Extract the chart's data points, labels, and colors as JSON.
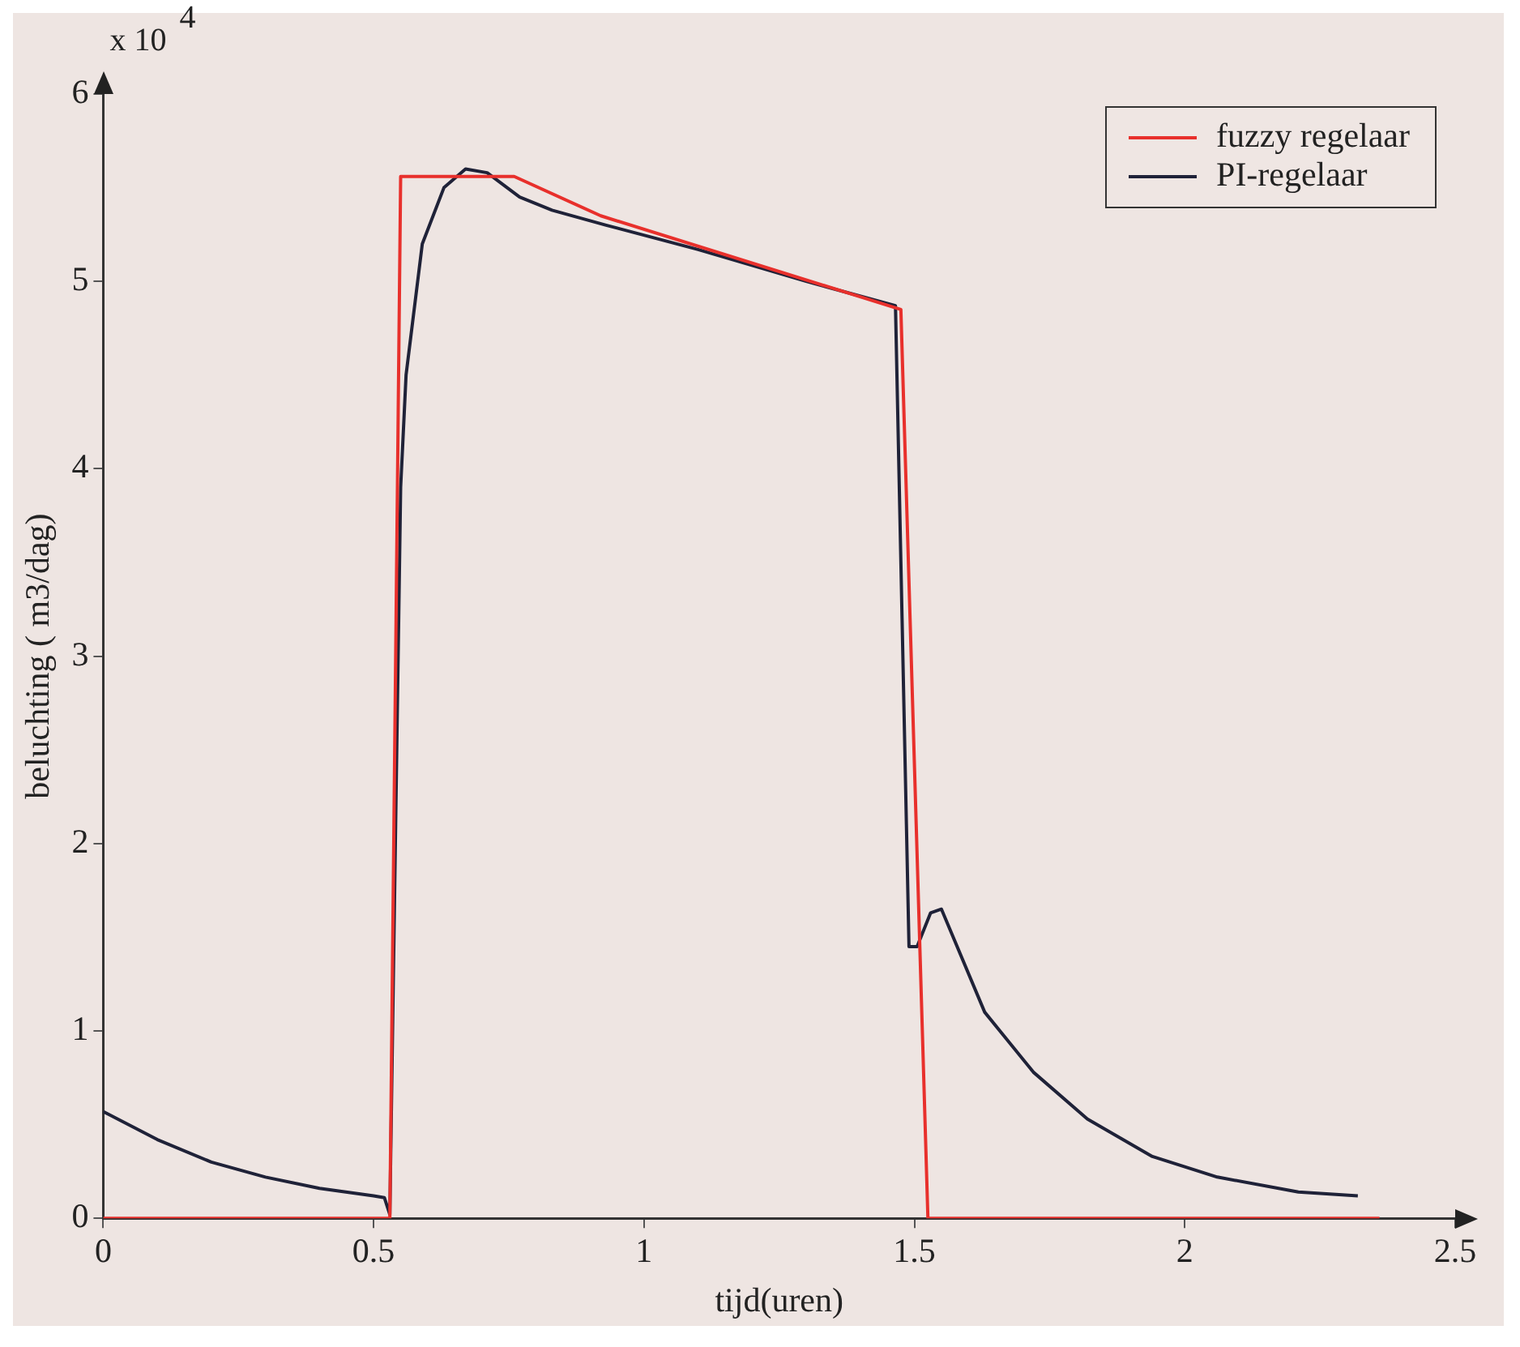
{
  "chart_data": {
    "type": "line",
    "xlabel": "tijd(uren)",
    "ylabel": "beluchting ( m3/dag)",
    "annotations": [
      "x 10$^{4}$"
    ],
    "xlim": [
      0,
      2.5
    ],
    "xticks": [
      0,
      0.5,
      1,
      1.5,
      2,
      2.5
    ],
    "ylim": [
      0,
      6
    ],
    "yticks": [
      0,
      1,
      2,
      3,
      4,
      5,
      6
    ],
    "grid": false,
    "legend": "top right",
    "marker": "none",
    "line_style": "solid",
    "series": [
      {
        "name": "fuzzy regelaar",
        "color": "#e8302c",
        "x": [
          0,
          0.53,
          0.55,
          0.585,
          0.76,
          0.92,
          1.475,
          1.525,
          2.36
        ],
        "values": [
          0,
          0,
          5.56,
          5.56,
          5.56,
          5.35,
          4.85,
          0,
          0
        ]
      },
      {
        "name": "PI-regelaar",
        "color": "#1f2238",
        "x": [
          0,
          0.1,
          0.2,
          0.3,
          0.4,
          0.5,
          0.52,
          0.53,
          0.55,
          0.56,
          0.59,
          0.63,
          0.67,
          0.71,
          0.77,
          0.83,
          0.93,
          1.1,
          1.3,
          1.465,
          1.49,
          1.505,
          1.53,
          1.55,
          1.63,
          1.72,
          1.82,
          1.94,
          2.06,
          2.21,
          2.32
        ],
        "values": [
          0.57,
          0.42,
          0.3,
          0.22,
          0.16,
          0.12,
          0.11,
          0.02,
          3.9,
          4.5,
          5.2,
          5.5,
          5.6,
          5.58,
          5.45,
          5.38,
          5.3,
          5.17,
          5.0,
          4.87,
          1.45,
          1.45,
          1.63,
          1.65,
          1.1,
          0.78,
          0.53,
          0.33,
          0.22,
          0.14,
          0.12
        ]
      }
    ]
  }
}
